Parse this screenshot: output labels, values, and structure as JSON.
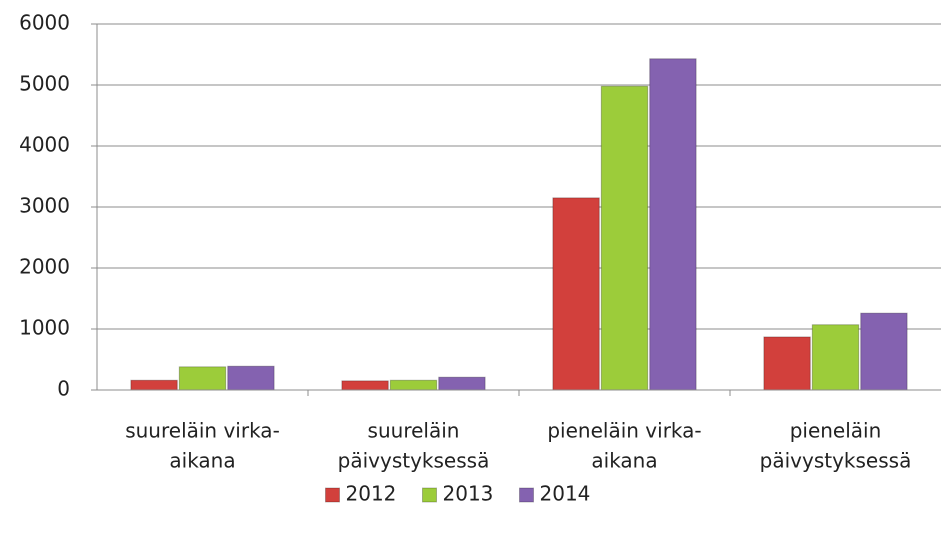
{
  "chart_data": {
    "type": "bar",
    "categories": [
      [
        "suureläin virka-",
        "aikana"
      ],
      [
        "suureläin",
        "päivystyksessä"
      ],
      [
        "pieneläin virka-",
        "aikana"
      ],
      [
        "pieneläin",
        "päivystyksessä"
      ]
    ],
    "series": [
      {
        "name": "2012",
        "color": "#d2403c",
        "values": [
          160,
          150,
          3150,
          870
        ]
      },
      {
        "name": "2013",
        "color": "#9ccc3a",
        "values": [
          380,
          160,
          4980,
          1070
        ]
      },
      {
        "name": "2014",
        "color": "#8462b0",
        "values": [
          390,
          210,
          5430,
          1260
        ]
      }
    ],
    "ylim": [
      0,
      6000
    ],
    "yticks": [
      0,
      1000,
      2000,
      3000,
      4000,
      5000,
      6000
    ],
    "grid": true,
    "legend": "bottom"
  }
}
